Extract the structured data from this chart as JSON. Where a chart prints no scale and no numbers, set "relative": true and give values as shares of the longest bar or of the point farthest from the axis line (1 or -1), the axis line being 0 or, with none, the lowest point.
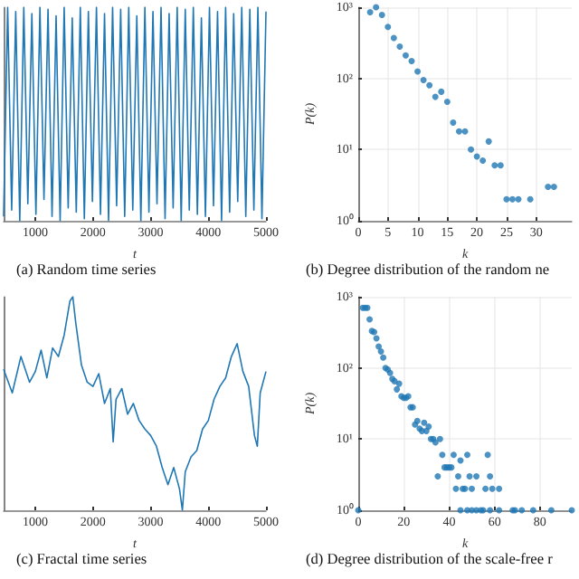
{
  "chart_data": [
    {
      "type": "line",
      "title": "(a) Random time series",
      "xlabel": "t",
      "relative": true,
      "marker": "none",
      "color": "#1f77b4",
      "xlim": [
        450,
        5000
      ],
      "xticks": [
        1000,
        2000,
        3000,
        4000,
        5000
      ],
      "x": [
        450,
        520,
        590,
        660,
        730,
        800,
        870,
        940,
        1010,
        1080,
        1150,
        1220,
        1290,
        1360,
        1430,
        1500,
        1570,
        1640,
        1710,
        1780,
        1850,
        1920,
        1990,
        2060,
        2130,
        2200,
        2270,
        2340,
        2410,
        2480,
        2550,
        2620,
        2690,
        2760,
        2830,
        2900,
        2970,
        3040,
        3110,
        3180,
        3250,
        3320,
        3390,
        3460,
        3530,
        3600,
        3670,
        3740,
        3810,
        3880,
        3950,
        4020,
        4090,
        4160,
        4230,
        4300,
        4370,
        4440,
        4510,
        4580,
        4650,
        4720,
        4790,
        4860,
        4930,
        5000
      ],
      "values": [
        0.02,
        1,
        0.05,
        0.98,
        0,
        1,
        0.08,
        0.97,
        0.03,
        1,
        0.1,
        0.99,
        0.02,
        0.96,
        0,
        1,
        0.06,
        0.95,
        0.04,
        1,
        0.01,
        0.98,
        0.09,
        1,
        0.03,
        0.97,
        0,
        1,
        0.07,
        0.99,
        0.02,
        1,
        0.05,
        0.96,
        0,
        1,
        0.04,
        0.98,
        0.08,
        1,
        0.01,
        0.97,
        0.06,
        1,
        0,
        0.99,
        0.05,
        1,
        0.03,
        0.95,
        0.02,
        1,
        0.07,
        0.98,
        0,
        1,
        0.04,
        0.97,
        0.09,
        1,
        0.02,
        0.99,
        0.05,
        1,
        0.01,
        0.98
      ]
    },
    {
      "type": "scatter",
      "title": "(b) Degree distribution of the random ne",
      "xlabel": "k",
      "ylabel": "P(k)",
      "log": "y",
      "grid": true,
      "marker": "circle",
      "color": "#1f77b4",
      "xlim": [
        0,
        36
      ],
      "xticks": [
        0,
        5,
        10,
        15,
        20,
        25,
        30
      ],
      "ylim": [
        1,
        1000
      ],
      "yticks": [
        {
          "value": 1,
          "label": "10⁰"
        },
        {
          "value": 10,
          "label": "10¹"
        },
        {
          "value": 100,
          "label": "10²"
        },
        {
          "value": 1000,
          "label": "10³"
        }
      ],
      "x": [
        2,
        3,
        4,
        5,
        6,
        7,
        8,
        9,
        10,
        11,
        12,
        13,
        14,
        15,
        16,
        17,
        18,
        19,
        20,
        21,
        22,
        23,
        24,
        25,
        26,
        27,
        29,
        32,
        33
      ],
      "values": [
        850,
        1000,
        780,
        530,
        370,
        280,
        210,
        175,
        125,
        95,
        80,
        55,
        65,
        47,
        24,
        18,
        18,
        10,
        8,
        7,
        13,
        6,
        6,
        2,
        2,
        2,
        2,
        3,
        3
      ]
    },
    {
      "type": "line",
      "title": "(c) Fractal time series",
      "xlabel": "t",
      "relative": true,
      "marker": "none",
      "color": "#1f77b4",
      "xlim": [
        450,
        5000
      ],
      "xticks": [
        1000,
        2000,
        3000,
        4000,
        5000
      ],
      "x": [
        450,
        600,
        750,
        900,
        1000,
        1100,
        1200,
        1300,
        1400,
        1500,
        1600,
        1650,
        1700,
        1800,
        1900,
        2000,
        2100,
        2200,
        2300,
        2350,
        2400,
        2500,
        2600,
        2700,
        2800,
        2900,
        3000,
        3100,
        3200,
        3300,
        3400,
        3500,
        3550,
        3600,
        3700,
        3800,
        3900,
        4000,
        4100,
        4200,
        4300,
        4400,
        4500,
        4600,
        4700,
        4800,
        4850,
        4900,
        5000
      ],
      "values": [
        0.66,
        0.55,
        0.72,
        0.6,
        0.65,
        0.75,
        0.62,
        0.76,
        0.72,
        0.82,
        0.98,
        1,
        0.88,
        0.68,
        0.6,
        0.58,
        0.64,
        0.5,
        0.57,
        0.32,
        0.52,
        0.57,
        0.45,
        0.5,
        0.42,
        0.38,
        0.35,
        0.3,
        0.2,
        0.12,
        0.2,
        0.1,
        0,
        0.18,
        0.25,
        0.28,
        0.38,
        0.42,
        0.52,
        0.58,
        0.62,
        0.72,
        0.78,
        0.65,
        0.58,
        0.35,
        0.3,
        0.55,
        0.65
      ]
    },
    {
      "type": "scatter",
      "title": "(d) Degree distribution of the scale-free r",
      "xlabel": "k",
      "ylabel": "P(k)",
      "log": "y",
      "grid": true,
      "marker": "circle",
      "color": "#1f77b4",
      "xlim": [
        0,
        94
      ],
      "xticks": [
        0,
        20,
        40,
        60,
        80
      ],
      "ylim": [
        1,
        1000
      ],
      "yticks": [
        {
          "value": 1,
          "label": "10⁰"
        },
        {
          "value": 10,
          "label": "10¹"
        },
        {
          "value": 100,
          "label": "10²"
        },
        {
          "value": 1000,
          "label": "10³"
        }
      ],
      "x": [
        2,
        3,
        4,
        5,
        6,
        7,
        8,
        9,
        10,
        11,
        12,
        13,
        14,
        15,
        16,
        17,
        18,
        19,
        20,
        21,
        22,
        23,
        24,
        25,
        26,
        27,
        28,
        29,
        30,
        31,
        32,
        33,
        34,
        35,
        36,
        37,
        38,
        39,
        40,
        41,
        42,
        43,
        44,
        45,
        46,
        47,
        48,
        49,
        50,
        52,
        56,
        57,
        58,
        59,
        62,
        0,
        45,
        48,
        50,
        52,
        54,
        55,
        58,
        62,
        68,
        69,
        72,
        77,
        85,
        94
      ],
      "values": [
        700,
        700,
        700,
        480,
        330,
        320,
        260,
        200,
        170,
        140,
        100,
        95,
        85,
        70,
        65,
        50,
        60,
        40,
        38,
        38,
        40,
        28,
        28,
        16,
        18,
        14,
        13,
        17,
        13,
        15,
        10,
        10,
        9,
        3,
        10,
        6,
        4,
        4,
        4,
        4,
        6,
        2,
        3,
        5,
        2,
        2,
        6,
        3,
        2,
        3,
        2,
        6,
        3,
        2,
        2,
        1,
        1,
        1,
        1,
        1,
        1,
        1,
        1,
        1,
        1,
        1,
        1,
        1,
        1,
        1
      ]
    }
  ]
}
